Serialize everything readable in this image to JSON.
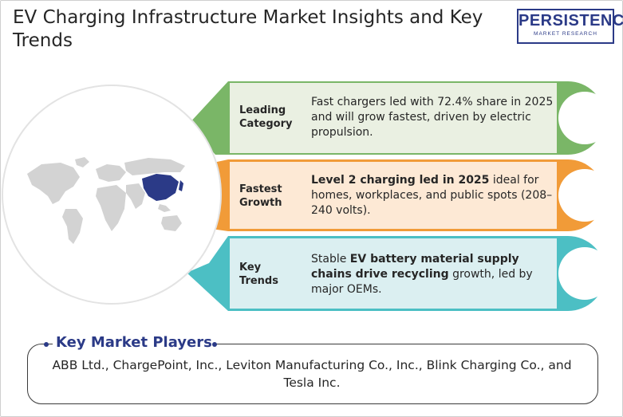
{
  "header": {
    "title": "EV Charging Infrastructure Market Insights and Key Trends",
    "logo_name": "PERSISTENCE",
    "logo_tagline": "MARKET RESEARCH"
  },
  "rows": [
    {
      "label_line1": "Leading",
      "label_line2": "Category",
      "text_bold": "",
      "text": "Fast chargers led with 72.4% share in 2025 and will grow fastest, driven by electric propulsion.",
      "color": "#7ab667"
    },
    {
      "label_line1": "Fastest",
      "label_line2": "Growth",
      "text_bold": "Level 2 charging led in 2025",
      "text": " ideal for homes, workplaces, and public spots (208–240 volts).",
      "color": "#f19b38"
    },
    {
      "label_line1": "Key",
      "label_line2": "Trends",
      "text_pre": "Stable ",
      "text_bold": "EV battery material supply chains drive recycling",
      "text": " growth, led by major OEMs.",
      "color": "#4cbfc4"
    }
  ],
  "players": {
    "title": "Key Market Players",
    "text": "ABB Ltd., ChargePoint, Inc., Leviton Manufacturing Co., Inc., Blink Charging Co., and Tesla Inc."
  },
  "colors": {
    "brand": "#2b3a87",
    "green": "#7ab667",
    "orange": "#f19b38",
    "teal": "#4cbfc4",
    "map_land": "#d3d3d3",
    "map_highlight": "#2b3a87"
  }
}
